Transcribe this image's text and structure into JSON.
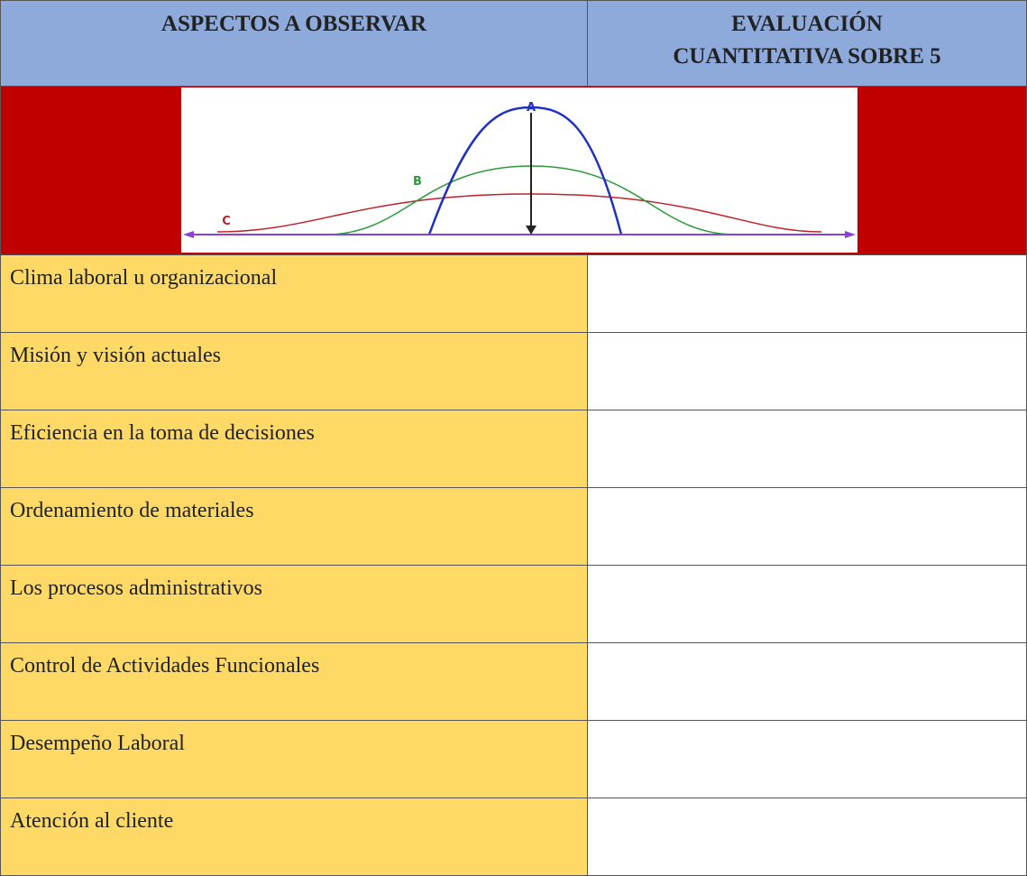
{
  "header": {
    "aspects": "ASPECTOS A OBSERVAR",
    "evaluation": [
      "EVALUACIÓN",
      "CUANTITATIVA SOBRE 5"
    ]
  },
  "image": {
    "labels": [
      "A",
      "B",
      "C"
    ]
  },
  "rows": [
    "Clima laboral u organizacional",
    "Misión y visión actuales",
    "Eficiencia en la toma de decisiones",
    "Ordenamiento de materiales",
    "Los procesos administrativos",
    "Control de Actividades Funcionales",
    "Desempeño Laboral",
    "Atención al cliente"
  ]
}
